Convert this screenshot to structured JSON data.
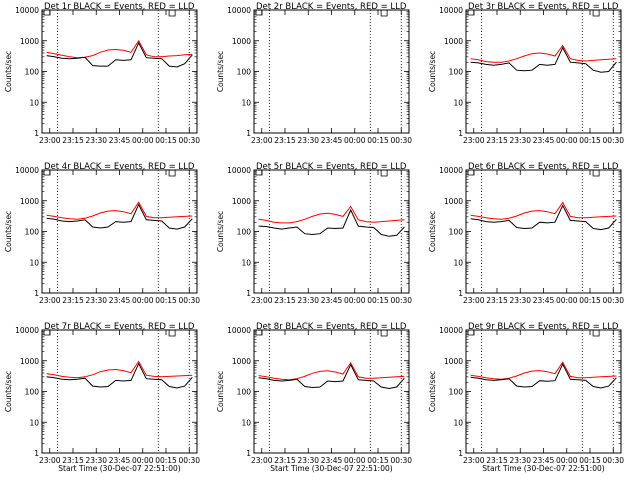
{
  "page": {
    "background": "#ffffff"
  },
  "colors": {
    "events": "#000000",
    "lld": "#ff0000",
    "axis": "#000000",
    "marker": "#000000"
  },
  "chart_data": [
    {
      "type": "line",
      "title": "Det 1r BLACK = Events, RED = LLD",
      "xlabel": "",
      "ylabel": "Counts/sec",
      "yscale": "log",
      "ylim": [
        1,
        10000
      ],
      "show_x_ticks": true,
      "x_tick_labels": [
        "23:00",
        "23:15",
        "23:30",
        "23:45",
        "00:00",
        "00:15",
        "00:30"
      ],
      "y_tick_labels": [
        "1",
        "10",
        "100",
        "1000",
        "10000"
      ],
      "grid": false,
      "events": [
        330,
        300,
        270,
        260,
        270,
        290,
        155,
        150,
        150,
        240,
        230,
        240,
        850,
        280,
        270,
        260,
        150,
        140,
        180,
        350
      ],
      "lld": [
        420,
        380,
        340,
        300,
        280,
        290,
        330,
        420,
        500,
        520,
        490,
        420,
        1000,
        350,
        300,
        300,
        320,
        330,
        350,
        360
      ],
      "data_start": 0.03,
      "data_end": 0.97
    },
    {
      "type": "line",
      "title": "Det 2r BLACK = Events, RED = LLD",
      "xlabel": "",
      "ylabel": "Counts/sec",
      "yscale": "log",
      "ylim": [
        1,
        10000
      ],
      "show_x_ticks": true,
      "x_tick_labels": [
        "23:00",
        "23:15",
        "23:30",
        "23:45",
        "00:00",
        "00:15",
        "00:30"
      ],
      "y_tick_labels": [
        "1",
        "10",
        "100",
        "1000",
        "10000"
      ],
      "grid": false,
      "events": [],
      "lld": [],
      "data_start": 0.03,
      "data_end": 0.97
    },
    {
      "type": "line",
      "title": "Det 3r BLACK = Events, RED = LLD",
      "xlabel": "",
      "ylabel": "Counts/sec",
      "yscale": "log",
      "ylim": [
        1,
        10000
      ],
      "show_x_ticks": true,
      "x_tick_labels": [
        "23:00",
        "23:15",
        "23:30",
        "23:45",
        "00:00",
        "00:15",
        "00:30"
      ],
      "y_tick_labels": [
        "1",
        "10",
        "100",
        "1000",
        "10000"
      ],
      "grid": false,
      "events": [
        200,
        190,
        170,
        160,
        170,
        190,
        110,
        105,
        110,
        170,
        160,
        170,
        600,
        200,
        190,
        180,
        110,
        95,
        100,
        200
      ],
      "lld": [
        260,
        240,
        210,
        200,
        200,
        220,
        260,
        320,
        380,
        400,
        370,
        320,
        700,
        260,
        230,
        220,
        230,
        240,
        250,
        260
      ],
      "data_start": 0.03,
      "data_end": 0.97
    },
    {
      "type": "line",
      "title": "Det 4r BLACK = Events, RED = LLD",
      "xlabel": "",
      "ylabel": "Counts/sec",
      "yscale": "log",
      "ylim": [
        1,
        10000
      ],
      "show_x_ticks": true,
      "x_tick_labels": [
        "23:00",
        "23:15",
        "23:30",
        "23:45",
        "00:00",
        "00:15",
        "00:30"
      ],
      "y_tick_labels": [
        "1",
        "10",
        "100",
        "1000",
        "10000"
      ],
      "grid": false,
      "events": [
        270,
        250,
        220,
        210,
        220,
        240,
        140,
        130,
        140,
        210,
        200,
        210,
        750,
        240,
        230,
        220,
        130,
        120,
        140,
        260
      ],
      "lld": [
        340,
        310,
        280,
        260,
        250,
        270,
        320,
        400,
        460,
        480,
        440,
        380,
        900,
        310,
        280,
        280,
        290,
        300,
        310,
        320
      ],
      "data_start": 0.03,
      "data_end": 0.97
    },
    {
      "type": "line",
      "title": "Det 5r BLACK = Events, RED = LLD",
      "xlabel": "",
      "ylabel": "Counts/sec",
      "yscale": "log",
      "ylim": [
        1,
        10000
      ],
      "show_x_ticks": true,
      "x_tick_labels": [
        "23:00",
        "23:15",
        "23:30",
        "23:45",
        "00:00",
        "00:15",
        "00:30"
      ],
      "y_tick_labels": [
        "1",
        "10",
        "100",
        "1000",
        "10000"
      ],
      "grid": false,
      "events": [
        150,
        145,
        130,
        120,
        130,
        140,
        85,
        80,
        85,
        130,
        125,
        130,
        500,
        150,
        140,
        135,
        80,
        70,
        75,
        140
      ],
      "lld": [
        250,
        230,
        200,
        190,
        190,
        210,
        250,
        310,
        370,
        390,
        360,
        310,
        650,
        240,
        210,
        200,
        210,
        220,
        230,
        240
      ],
      "data_start": 0.03,
      "data_end": 0.97
    },
    {
      "type": "line",
      "title": "Det 6r BLACK = Events, RED = LLD",
      "xlabel": "",
      "ylabel": "Counts/sec",
      "yscale": "log",
      "ylim": [
        1,
        10000
      ],
      "show_x_ticks": true,
      "x_tick_labels": [
        "23:00",
        "23:15",
        "23:30",
        "23:45",
        "00:00",
        "00:15",
        "00:30"
      ],
      "y_tick_labels": [
        "1",
        "10",
        "100",
        "1000",
        "10000"
      ],
      "grid": false,
      "events": [
        260,
        240,
        210,
        200,
        210,
        230,
        135,
        125,
        130,
        200,
        190,
        200,
        700,
        230,
        220,
        210,
        125,
        115,
        130,
        250
      ],
      "lld": [
        340,
        310,
        280,
        260,
        250,
        270,
        320,
        400,
        460,
        480,
        440,
        380,
        880,
        310,
        280,
        280,
        290,
        300,
        310,
        320
      ],
      "data_start": 0.03,
      "data_end": 0.97
    },
    {
      "type": "line",
      "title": "Det 7r BLACK = Events, RED = LLD",
      "xlabel": "Start Time (30-Dec-07 22:51:00)",
      "ylabel": "Counts/sec",
      "yscale": "log",
      "ylim": [
        1,
        10000
      ],
      "show_x_ticks": true,
      "x_tick_labels": [
        "23:00",
        "23:15",
        "23:30",
        "23:45",
        "00:00",
        "00:15",
        "00:30"
      ],
      "y_tick_labels": [
        "1",
        "10",
        "100",
        "1000",
        "10000"
      ],
      "grid": false,
      "events": [
        300,
        280,
        250,
        240,
        250,
        270,
        150,
        140,
        145,
        230,
        220,
        230,
        800,
        260,
        250,
        240,
        145,
        130,
        150,
        290
      ],
      "lld": [
        380,
        350,
        310,
        290,
        280,
        300,
        350,
        440,
        500,
        520,
        480,
        410,
        950,
        340,
        310,
        300,
        310,
        320,
        330,
        340
      ],
      "data_start": 0.03,
      "data_end": 0.97
    },
    {
      "type": "line",
      "title": "Det 8r BLACK = Events, RED = LLD",
      "xlabel": "Start Time (30-Dec-07 22:51:00)",
      "ylabel": "Counts/sec",
      "yscale": "log",
      "ylim": [
        1,
        10000
      ],
      "show_x_ticks": true,
      "x_tick_labels": [
        "23:00",
        "23:15",
        "23:30",
        "23:45",
        "00:00",
        "00:15",
        "00:30"
      ],
      "y_tick_labels": [
        "1",
        "10",
        "100",
        "1000",
        "10000"
      ],
      "grid": false,
      "events": [
        280,
        260,
        230,
        220,
        230,
        250,
        145,
        135,
        140,
        220,
        210,
        220,
        750,
        240,
        230,
        220,
        140,
        125,
        140,
        270
      ],
      "lld": [
        330,
        300,
        270,
        250,
        240,
        260,
        310,
        390,
        450,
        470,
        430,
        370,
        850,
        300,
        270,
        270,
        280,
        290,
        300,
        310
      ],
      "data_start": 0.03,
      "data_end": 0.97
    },
    {
      "type": "line",
      "title": "Det 9r BLACK = Events, RED = LLD",
      "xlabel": "Start Time (30-Dec-07 22:51:00)",
      "ylabel": "Counts/sec",
      "yscale": "log",
      "ylim": [
        1,
        10000
      ],
      "show_x_ticks": true,
      "x_tick_labels": [
        "23:00",
        "23:15",
        "23:30",
        "23:45",
        "00:00",
        "00:15",
        "00:30"
      ],
      "y_tick_labels": [
        "1",
        "10",
        "100",
        "1000",
        "10000"
      ],
      "grid": false,
      "events": [
        290,
        270,
        240,
        230,
        240,
        260,
        150,
        140,
        145,
        225,
        215,
        225,
        780,
        250,
        240,
        230,
        145,
        130,
        150,
        280
      ],
      "lld": [
        340,
        310,
        280,
        260,
        250,
        270,
        320,
        400,
        460,
        480,
        440,
        380,
        900,
        310,
        280,
        280,
        290,
        300,
        310,
        320
      ],
      "data_start": 0.03,
      "data_end": 0.97
    }
  ]
}
